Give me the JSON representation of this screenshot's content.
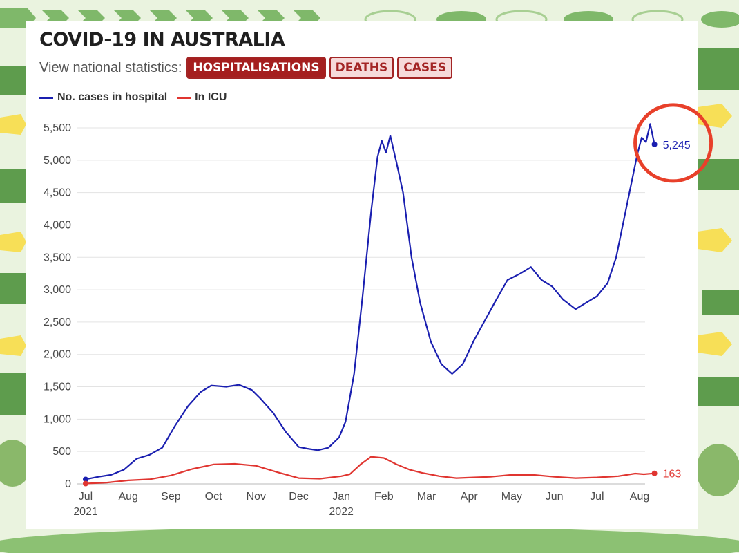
{
  "title": "COVID-19 IN AUSTRALIA",
  "nav": {
    "label": "View national statistics:",
    "buttons": [
      {
        "label": "HOSPITALISATIONS",
        "active": true
      },
      {
        "label": "DEATHS",
        "active": false
      },
      {
        "label": "CASES",
        "active": false
      }
    ]
  },
  "colors": {
    "hospital": "#1a1fb0",
    "icu": "#e03530",
    "highlight_circle": "#e8402a",
    "accent": "#a51f1f"
  },
  "chart_data": {
    "type": "line",
    "x_unit": "month index (0 = Jul 2021)",
    "xlim": [
      0,
      13
    ],
    "ylim": [
      0,
      5500
    ],
    "y_ticks": [
      0,
      500,
      1000,
      1500,
      2000,
      2500,
      3000,
      3500,
      4000,
      4500,
      5000,
      5500
    ],
    "y_tick_labels": [
      "0",
      "500",
      "1,000",
      "1,500",
      "2,000",
      "2,500",
      "3,000",
      "3,500",
      "4,000",
      "4,500",
      "5,000",
      "5,500"
    ],
    "x_tick_labels": [
      "Jul",
      "Aug",
      "Sep",
      "Oct",
      "Nov",
      "Dec",
      "Jan",
      "Feb",
      "Mar",
      "Apr",
      "May",
      "Jun",
      "Jul",
      "Aug"
    ],
    "x_year_labels": [
      {
        "at": 0,
        "label": "2021"
      },
      {
        "at": 6,
        "label": "2022"
      }
    ],
    "grid": "horizontal",
    "legend_position": "top-left",
    "highlight": "circle around latest hospital value",
    "series": [
      {
        "name": "No. cases in hospital",
        "end_label": "5,245",
        "points": [
          [
            0,
            70
          ],
          [
            0.3,
            110
          ],
          [
            0.6,
            140
          ],
          [
            0.9,
            220
          ],
          [
            1.2,
            390
          ],
          [
            1.5,
            450
          ],
          [
            1.8,
            560
          ],
          [
            2.1,
            900
          ],
          [
            2.4,
            1200
          ],
          [
            2.7,
            1420
          ],
          [
            2.95,
            1520
          ],
          [
            3.3,
            1500
          ],
          [
            3.6,
            1530
          ],
          [
            3.9,
            1450
          ],
          [
            4.1,
            1320
          ],
          [
            4.4,
            1100
          ],
          [
            4.7,
            800
          ],
          [
            5.0,
            570
          ],
          [
            5.2,
            545
          ],
          [
            5.45,
            520
          ],
          [
            5.7,
            560
          ],
          [
            5.95,
            720
          ],
          [
            6.1,
            960
          ],
          [
            6.3,
            1700
          ],
          [
            6.5,
            2900
          ],
          [
            6.7,
            4200
          ],
          [
            6.85,
            5050
          ],
          [
            6.95,
            5300
          ],
          [
            7.05,
            5120
          ],
          [
            7.15,
            5380
          ],
          [
            7.3,
            4950
          ],
          [
            7.45,
            4500
          ],
          [
            7.65,
            3500
          ],
          [
            7.85,
            2800
          ],
          [
            8.1,
            2200
          ],
          [
            8.35,
            1850
          ],
          [
            8.6,
            1700
          ],
          [
            8.85,
            1850
          ],
          [
            9.1,
            2200
          ],
          [
            9.35,
            2500
          ],
          [
            9.6,
            2800
          ],
          [
            9.9,
            3150
          ],
          [
            10.2,
            3250
          ],
          [
            10.45,
            3350
          ],
          [
            10.7,
            3150
          ],
          [
            10.95,
            3050
          ],
          [
            11.2,
            2850
          ],
          [
            11.5,
            2700
          ],
          [
            11.75,
            2800
          ],
          [
            12.0,
            2900
          ],
          [
            12.25,
            3100
          ],
          [
            12.45,
            3500
          ],
          [
            12.7,
            4300
          ],
          [
            12.95,
            5100
          ],
          [
            13.05,
            5350
          ],
          [
            13.15,
            5280
          ],
          [
            13.25,
            5560
          ],
          [
            13.35,
            5245
          ]
        ]
      },
      {
        "name": "In ICU",
        "end_label": "163",
        "points": [
          [
            0,
            5
          ],
          [
            0.5,
            20
          ],
          [
            1.0,
            55
          ],
          [
            1.5,
            70
          ],
          [
            2.0,
            130
          ],
          [
            2.5,
            230
          ],
          [
            3.0,
            300
          ],
          [
            3.5,
            310
          ],
          [
            4.0,
            280
          ],
          [
            4.5,
            180
          ],
          [
            5.0,
            90
          ],
          [
            5.5,
            80
          ],
          [
            6.0,
            120
          ],
          [
            6.2,
            150
          ],
          [
            6.45,
            300
          ],
          [
            6.7,
            420
          ],
          [
            7.0,
            400
          ],
          [
            7.3,
            300
          ],
          [
            7.6,
            220
          ],
          [
            7.9,
            170
          ],
          [
            8.3,
            120
          ],
          [
            8.7,
            90
          ],
          [
            9.1,
            100
          ],
          [
            9.5,
            110
          ],
          [
            10.0,
            140
          ],
          [
            10.5,
            140
          ],
          [
            11.0,
            110
          ],
          [
            11.5,
            90
          ],
          [
            12.0,
            100
          ],
          [
            12.5,
            120
          ],
          [
            12.9,
            160
          ],
          [
            13.1,
            150
          ],
          [
            13.35,
            163
          ]
        ]
      }
    ]
  }
}
